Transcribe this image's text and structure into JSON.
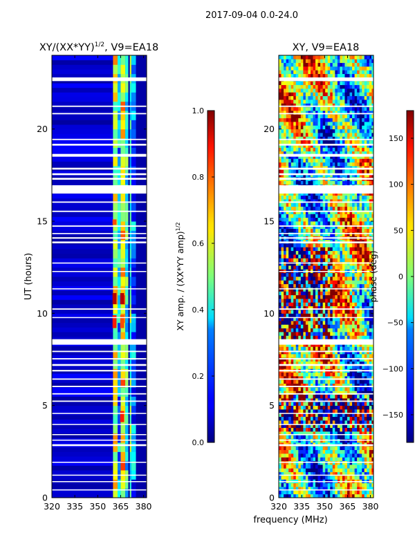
{
  "figure": {
    "suptitle": "2017-09-04 0.0-24.0",
    "xlabel": "frequency (MHz)"
  },
  "chart_data": [
    {
      "type": "heatmap",
      "name": "amplitude-panel",
      "title_main": "XY/(XX*YY)",
      "title_sup": "1/2",
      "title_tail": ", V9=EA18",
      "ylabel": "UT (hours)",
      "xlim": [
        320,
        382
      ],
      "ylim": [
        0,
        24
      ],
      "xticks": [
        320,
        335,
        350,
        365,
        380
      ],
      "yticks": [
        0,
        5,
        10,
        15,
        20
      ],
      "colormap": "jet",
      "colorbar": {
        "label_main": "XY amp. / (XX*YY amp)",
        "label_sup": "1/2",
        "range": [
          0.0,
          1.0
        ],
        "ticks": [
          "0.0",
          "0.2",
          "0.4",
          "0.6",
          "0.8",
          "1.0"
        ],
        "tick_values": [
          0.0,
          0.2,
          0.4,
          0.6,
          0.8,
          1.0
        ]
      },
      "channel_columns": [
        {
          "x0": 360,
          "x1": 363,
          "value": 0.6
        },
        {
          "x0": 363,
          "x1": 365,
          "value": 0.3
        },
        {
          "x0": 365,
          "x1": 368,
          "value": 0.65
        },
        {
          "x0": 368,
          "x1": 370,
          "value": 0.4
        },
        {
          "x0": 371,
          "x1": 372,
          "value": 0.45
        },
        {
          "x0": 372,
          "x1": 375,
          "value": 0.25
        }
      ],
      "hot_spots": [
        {
          "x": 361,
          "y0": 10.5,
          "y1": 11.1,
          "value": 0.95
        },
        {
          "x": 366,
          "y0": 10.5,
          "y1": 11.1,
          "value": 0.95
        },
        {
          "x": 361,
          "y0": 9.2,
          "y1": 9.9,
          "value": 0.85
        },
        {
          "x": 366,
          "y0": 9.2,
          "y1": 9.9,
          "value": 0.8
        },
        {
          "x": 366,
          "y0": 4.1,
          "y1": 4.7,
          "value": 0.85
        },
        {
          "x": 361,
          "y0": 14.8,
          "y1": 15.1,
          "value": 0.8
        }
      ]
    },
    {
      "type": "heatmap",
      "name": "phase-panel",
      "title": "XY, V9=EA18",
      "xlim": [
        320,
        382
      ],
      "ylim": [
        0,
        24
      ],
      "xticks": [
        320,
        335,
        350,
        365,
        380
      ],
      "yticks": [
        0,
        5,
        10,
        15,
        20
      ],
      "colormap": "jet",
      "colorbar": {
        "label": "phase (deg)",
        "range": [
          -180,
          180
        ],
        "ticks": [
          "150",
          "100",
          "50",
          "0",
          "−50",
          "−100",
          "−150"
        ],
        "tick_values": [
          150,
          100,
          50,
          0,
          -50,
          -100,
          -150
        ]
      }
    }
  ],
  "flagged_intervals_hours": [
    [
      22.6,
      22.8
    ],
    [
      21.2,
      21.27
    ],
    [
      20.8,
      20.87
    ],
    [
      19.4,
      19.47
    ],
    [
      19.1,
      19.2
    ],
    [
      18.5,
      18.65
    ],
    [
      17.8,
      17.9
    ],
    [
      17.5,
      17.6
    ],
    [
      17.25,
      17.35
    ],
    [
      16.5,
      16.95
    ],
    [
      16.0,
      16.07
    ],
    [
      15.5,
      15.57
    ],
    [
      14.7,
      14.77
    ],
    [
      14.3,
      14.36
    ],
    [
      14.05,
      14.13
    ],
    [
      13.8,
      13.9
    ],
    [
      12.7,
      12.76
    ],
    [
      12.25,
      12.3
    ],
    [
      11.3,
      11.36
    ],
    [
      10.2,
      10.27
    ],
    [
      9.75,
      9.8
    ],
    [
      8.3,
      8.6
    ],
    [
      7.9,
      7.97
    ],
    [
      7.5,
      7.57
    ],
    [
      7.15,
      7.25
    ],
    [
      6.85,
      6.93
    ],
    [
      6.4,
      6.47
    ],
    [
      6.0,
      6.07
    ],
    [
      5.6,
      5.67
    ],
    [
      5.2,
      5.27
    ],
    [
      4.55,
      4.6
    ],
    [
      3.95,
      4.0
    ],
    [
      3.4,
      3.45
    ],
    [
      3.1,
      3.15
    ],
    [
      2.8,
      2.9
    ],
    [
      1.9,
      1.95
    ],
    [
      1.2,
      1.25
    ],
    [
      0.85,
      0.9
    ],
    [
      0.4,
      0.45
    ]
  ]
}
